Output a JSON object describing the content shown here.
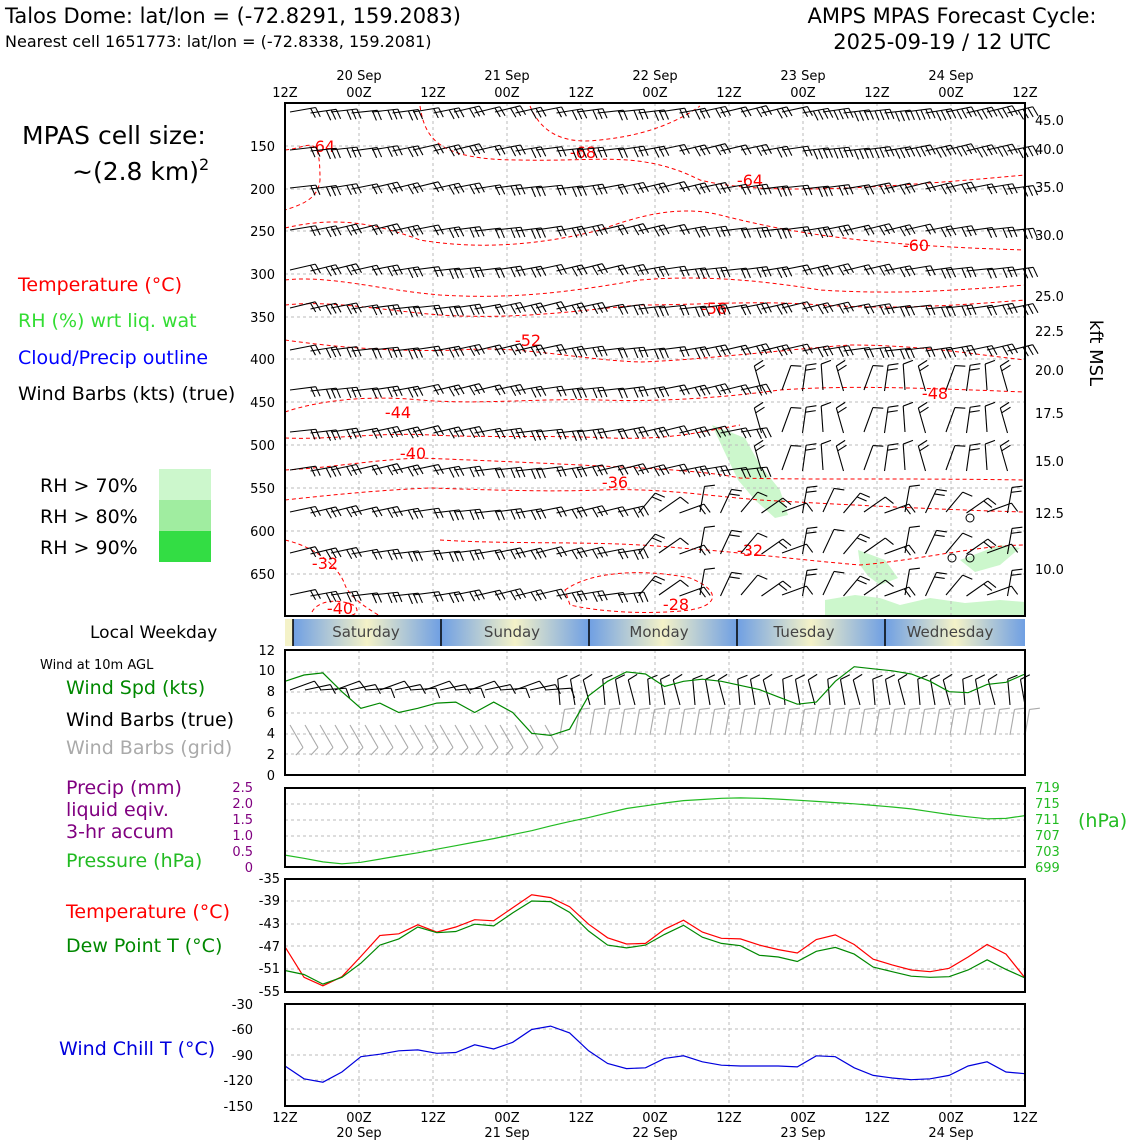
{
  "header": {
    "station_title": "Talos Dome: lat/lon = (-72.8291, 159.2083)",
    "nearest_cell": "Nearest cell 1651773: lat/lon = (-72.8338, 159.2081)",
    "cycle_line1": "AMPS MPAS Forecast Cycle:",
    "cycle_line2": "2025-09-19 / 12 UTC"
  },
  "legend": {
    "cell_size_line1": "MPAS cell size:",
    "cell_size_line2": "~(2.8 km)",
    "cell_size_sup": "2",
    "temperature": "Temperature (°C)",
    "rh": "RH (%) wrt liq. wat",
    "cloud": "Cloud/Precip outline",
    "wind_barbs": "Wind Barbs (kts) (true)",
    "rh_levels": [
      {
        "label": "RH > 70%",
        "color": "#ccf7cc"
      },
      {
        "label": "RH > 80%",
        "color": "#a0eda0"
      },
      {
        "label": "RH > 90%",
        "color": "#33dd44"
      }
    ],
    "local_weekday": "Local Weekday",
    "wind_10m": "Wind at 10m AGL",
    "wind_spd": "Wind Spd (kts)",
    "barbs_true": "Wind Barbs (true)",
    "barbs_grid": "Wind Barbs (grid)",
    "precip_line1": "Precip (mm)",
    "precip_line2": "liquid eqiv.",
    "precip_line3": "3-hr accum",
    "pressure": "Pressure (hPa)",
    "pressure_unit": "(hPa)",
    "temp2": "Temperature (°C)",
    "dewpoint": "Dew Point T (°C)",
    "windchill": "Wind Chill T (°C)",
    "kft_label": "kft MSL"
  },
  "colors": {
    "temp": "#ff0000",
    "green": "#008800",
    "pressure": "#22bb22",
    "precip": "#800080",
    "windchill": "#0000dd",
    "grid": "#bbbbbb",
    "grid_barb": "#aaaaaa",
    "weekday_blue": "#6f9fe3",
    "weekday_cream": "#f4f2c8"
  },
  "time_axis": {
    "top_hours": [
      "12Z",
      "00Z",
      "12Z",
      "00Z",
      "12Z",
      "00Z",
      "12Z",
      "00Z",
      "12Z",
      "00Z",
      "12Z"
    ],
    "dates": [
      "20 Sep",
      "21 Sep",
      "22 Sep",
      "23 Sep",
      "24 Sep"
    ],
    "weekdays": [
      "Saturday",
      "Sunday",
      "Monday",
      "Tuesday",
      "Wednesday"
    ]
  },
  "chart_data": [
    {
      "type": "contour",
      "name": "cross-section",
      "y_pressure_ticks": [
        "150",
        "200",
        "250",
        "300",
        "350",
        "400",
        "450",
        "500",
        "550",
        "600",
        "650"
      ],
      "y_height_ticks": [
        "45.0",
        "40.0",
        "35.0",
        "30.0",
        "25.0",
        "22.5",
        "20.0",
        "17.5",
        "15.0",
        "12.5",
        "10.0"
      ],
      "temp_labels": [
        "-64",
        "-68",
        "-64",
        "-60",
        "-56",
        "-52",
        "-48",
        "-44",
        "-40",
        "-36",
        "-32",
        "-32",
        "-28",
        "-40"
      ],
      "ylim_hpa": [
        700,
        110
      ],
      "rh_regions": "RH > 70% patches near 22-23 Sep mid-levels and low levels 23-24 Sep"
    },
    {
      "type": "line",
      "name": "wind-speed",
      "ylabel": "Wind Spd (kts)",
      "y_ticks": [
        "0",
        "2",
        "4",
        "6",
        "8",
        "10",
        "12"
      ],
      "ylim": [
        0,
        12
      ],
      "values": [
        9.0,
        9.6,
        9.8,
        8.0,
        6.4,
        6.9,
        6.0,
        6.4,
        6.9,
        7.0,
        6.0,
        7.0,
        6.0,
        4.0,
        3.8,
        4.4,
        7.6,
        9.0,
        9.9,
        9.7,
        8.5,
        9.0,
        9.2,
        9.0,
        8.6,
        8.2,
        7.5,
        6.8,
        7.0,
        9.0,
        10.4,
        10.2,
        10.0,
        9.7,
        9.0,
        8.0,
        7.9,
        8.7,
        8.9,
        9.7
      ]
    },
    {
      "type": "line",
      "name": "precip-pressure",
      "ylabel_left": "Precip (mm)",
      "ylabel_right": "Pressure (hPa)",
      "precip_ticks": [
        "0",
        "0.5",
        "1.0",
        "1.5",
        "2.0",
        "2.5"
      ],
      "pressure_ticks": [
        "699",
        "703",
        "707",
        "711",
        "715",
        "719"
      ],
      "ylim_hpa": [
        699,
        719
      ],
      "pressure": [
        702.0,
        701.2,
        700.3,
        699.8,
        700.2,
        701.0,
        701.8,
        702.6,
        703.5,
        704.4,
        705.3,
        706.2,
        707.2,
        708.2,
        709.4,
        710.5,
        711.5,
        712.7,
        713.8,
        714.5,
        715.2,
        715.8,
        716.1,
        716.4,
        716.5,
        716.4,
        716.2,
        715.9,
        715.6,
        715.3,
        715.0,
        714.6,
        714.2,
        713.7,
        713.0,
        712.3,
        711.7,
        711.2,
        711.3,
        712.0
      ]
    },
    {
      "type": "line",
      "name": "temperature-dewpoint",
      "y_ticks": [
        "-35",
        "-39",
        "-43",
        "-47",
        "-51",
        "-55"
      ],
      "ylim": [
        -55,
        -35
      ],
      "series": [
        {
          "name": "Temperature (°C)",
          "values": [
            -47.0,
            -52.4,
            -53.9,
            -52.3,
            -48.7,
            -45.0,
            -44.7,
            -43.1,
            -44.4,
            -43.5,
            -42.2,
            -42.4,
            -40.1,
            -37.8,
            -38.3,
            -39.9,
            -43.0,
            -45.4,
            -46.5,
            -46.4,
            -43.9,
            -42.3,
            -44.4,
            -45.5,
            -45.6,
            -46.7,
            -47.5,
            -48.1,
            -45.7,
            -44.9,
            -46.6,
            -49.2,
            -50.2,
            -51.1,
            -51.4,
            -50.8,
            -48.8,
            -46.6,
            -48.3,
            -52.5
          ]
        },
        {
          "name": "Dew Point T (°C)",
          "values": [
            -51.2,
            -51.9,
            -53.6,
            -52.4,
            -49.9,
            -46.7,
            -45.6,
            -43.5,
            -44.5,
            -44.3,
            -43.0,
            -43.3,
            -41.0,
            -38.9,
            -39.0,
            -40.9,
            -44.2,
            -46.7,
            -47.2,
            -46.7,
            -44.8,
            -43.2,
            -45.3,
            -46.4,
            -46.8,
            -48.5,
            -48.8,
            -49.6,
            -47.8,
            -47.1,
            -48.3,
            -50.6,
            -51.4,
            -52.2,
            -52.4,
            -52.3,
            -51.1,
            -49.3,
            -51.0,
            -52.5
          ]
        }
      ]
    },
    {
      "type": "line",
      "name": "wind-chill",
      "ylabel": "Wind Chill T (°C)",
      "y_ticks": [
        "-30",
        "-60",
        "-90",
        "-120",
        "-150"
      ],
      "ylim": [
        -150,
        -30
      ],
      "values": [
        -103,
        -118,
        -122,
        -110,
        -92,
        -89,
        -85,
        -84,
        -88,
        -87,
        -78,
        -83,
        -75,
        -60,
        -56,
        -64,
        -85,
        -100,
        -106,
        -105,
        -94,
        -91,
        -98,
        -102,
        -103,
        -103,
        -103,
        -104,
        -91,
        -92,
        -105,
        -114,
        -117,
        -119,
        -118,
        -114,
        -103,
        -98,
        -110,
        -112
      ]
    }
  ]
}
